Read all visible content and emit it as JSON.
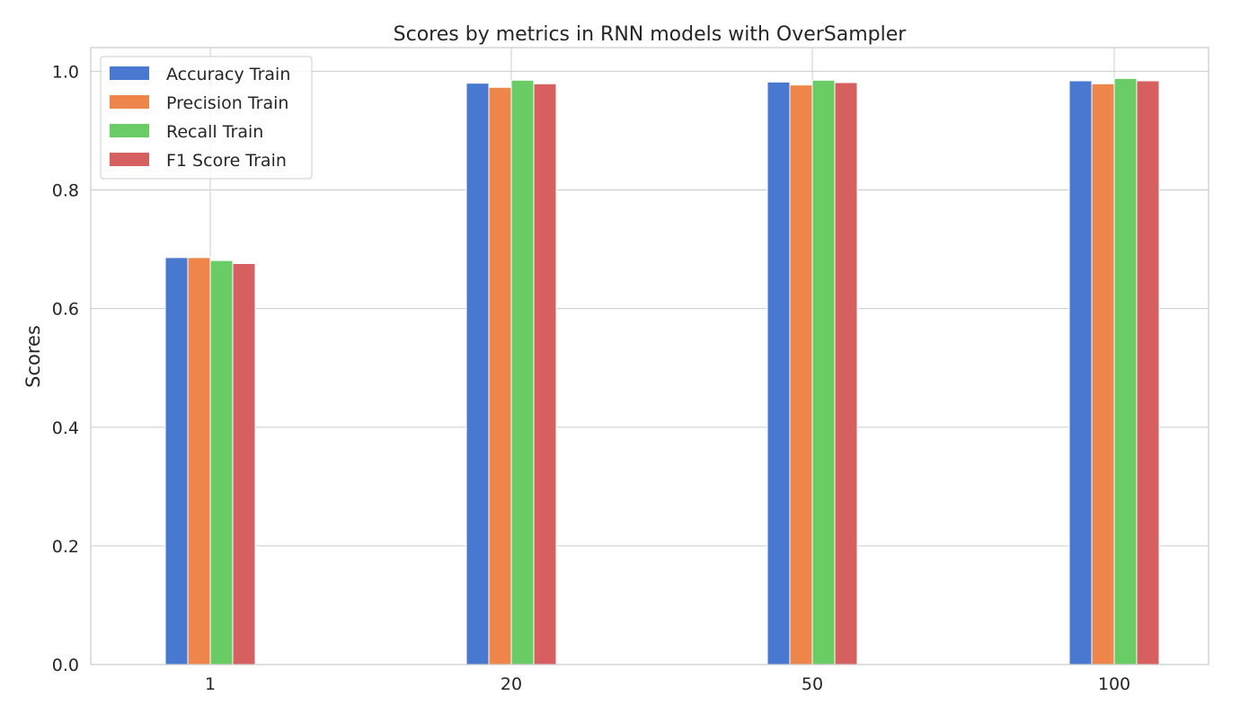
{
  "chart_data": {
    "type": "bar",
    "title": "Scores by metrics in RNN models with OverSampler",
    "xlabel": "",
    "ylabel": "Scores",
    "categories": [
      "1",
      "20",
      "50",
      "100"
    ],
    "ylim": [
      0,
      1.04
    ],
    "yticks": [
      "0.0",
      "0.2",
      "0.4",
      "0.6",
      "0.8",
      "1.0"
    ],
    "grid": true,
    "legend_position": "top-left",
    "series": [
      {
        "name": "Accuracy Train",
        "color": "#4878d0",
        "values": [
          0.686,
          0.98,
          0.982,
          0.984
        ]
      },
      {
        "name": "Precision Train",
        "color": "#ee854a",
        "values": [
          0.686,
          0.973,
          0.977,
          0.979
        ]
      },
      {
        "name": "Recall Train",
        "color": "#6acc64",
        "values": [
          0.681,
          0.985,
          0.985,
          0.988
        ]
      },
      {
        "name": "F1 Score Train",
        "color": "#d65f5f",
        "values": [
          0.676,
          0.979,
          0.981,
          0.984
        ]
      }
    ]
  }
}
